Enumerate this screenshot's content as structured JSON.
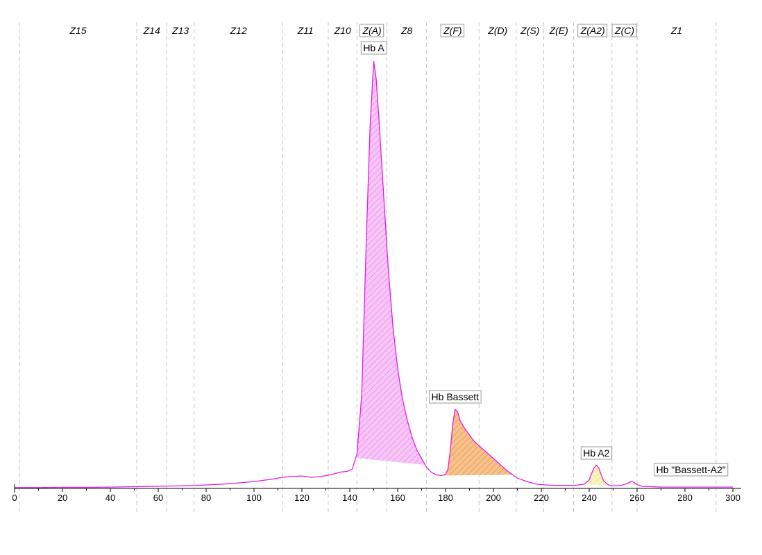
{
  "chart_data": {
    "type": "area",
    "xlim": [
      0,
      300
    ],
    "x_ticks": [
      0,
      20,
      40,
      60,
      80,
      100,
      120,
      140,
      160,
      180,
      200,
      220,
      240,
      260,
      280,
      300
    ],
    "zone_boundaries": [
      2,
      51,
      63.5,
      75,
      112,
      131,
      143,
      155.5,
      172,
      194,
      209.5,
      221,
      233.5,
      249.5,
      260,
      293
    ],
    "zones": [
      {
        "label": "Z15",
        "center": 26.5,
        "boxed": false
      },
      {
        "label": "Z14",
        "center": 57.3,
        "boxed": false
      },
      {
        "label": "Z13",
        "center": 69.3,
        "boxed": false
      },
      {
        "label": "Z12",
        "center": 93.5,
        "boxed": false
      },
      {
        "label": "Z11",
        "center": 121.5,
        "boxed": false
      },
      {
        "label": "Z10",
        "center": 137,
        "boxed": false
      },
      {
        "label": "Z(A)",
        "center": 149.3,
        "boxed": true
      },
      {
        "label": "Z8",
        "center": 163.8,
        "boxed": false
      },
      {
        "label": "Z(F)",
        "center": 183,
        "boxed": true
      },
      {
        "label": "Z(D)",
        "center": 201.8,
        "boxed": false
      },
      {
        "label": "Z(S)",
        "center": 215.3,
        "boxed": false
      },
      {
        "label": "Z(E)",
        "center": 227.3,
        "boxed": false
      },
      {
        "label": "Z(A2)",
        "center": 241.5,
        "boxed": true
      },
      {
        "label": "Z(C)",
        "center": 254.8,
        "boxed": true
      },
      {
        "label": "Z1",
        "center": 276.5,
        "boxed": false
      }
    ],
    "trace": {
      "color": "#e020e0",
      "x": [
        0,
        10,
        20,
        30,
        40,
        50,
        60,
        70,
        80,
        90,
        100,
        108,
        112,
        116,
        120,
        124,
        128,
        132,
        136,
        139,
        141,
        143,
        145,
        147,
        148.5,
        150,
        151,
        152,
        154,
        156,
        158,
        160,
        162,
        164,
        166,
        168,
        170,
        172,
        174,
        176,
        178,
        180,
        181,
        182,
        183,
        184,
        185,
        186,
        188,
        190,
        192,
        194,
        196,
        198,
        200,
        202,
        204,
        206,
        208,
        210,
        214,
        218,
        222,
        226,
        230,
        234,
        238,
        240,
        241,
        242,
        243,
        244,
        245,
        246,
        248,
        250,
        252,
        254,
        256,
        257,
        258,
        259,
        260,
        262,
        266,
        270,
        280,
        290,
        300
      ],
      "y": [
        0.2,
        0.2,
        0.25,
        0.25,
        0.3,
        0.4,
        0.5,
        0.6,
        0.8,
        1.1,
        1.6,
        2.2,
        2.6,
        2.8,
        2.9,
        2.6,
        2.8,
        3.2,
        3.8,
        4.0,
        4.5,
        8,
        22,
        60,
        85,
        100,
        96,
        88,
        70,
        52,
        38,
        28,
        21,
        16,
        12,
        9,
        7,
        5,
        3.8,
        3.2,
        3.0,
        3.3,
        4.5,
        9,
        15,
        18.5,
        18,
        16,
        14,
        12.5,
        11,
        10,
        9,
        8,
        7,
        6,
        5,
        4,
        3.2,
        2.4,
        1.6,
        1.0,
        0.8,
        0.7,
        0.7,
        0.7,
        1.0,
        2.0,
        3.5,
        4.8,
        5.4,
        4.8,
        3.2,
        1.8,
        0.8,
        0.6,
        0.6,
        0.8,
        1.2,
        1.5,
        1.6,
        1.3,
        0.9,
        0.5,
        0.4,
        0.3,
        0.3,
        0.3,
        0.3
      ]
    },
    "peaks": [
      {
        "name": "Hb A",
        "x": 150,
        "y": 100,
        "range": [
          142.5,
          171.5
        ],
        "fill": "#f7c6f7",
        "hatch": "#e98be9"
      },
      {
        "name": "Hb Bassett",
        "x": 184,
        "y": 18.5,
        "range": [
          178,
          208
        ],
        "fill": "#f7c28d",
        "hatch": "#e8934a"
      },
      {
        "name": "Hb A2",
        "x": 243,
        "y": 5.4,
        "range": [
          238,
          250
        ],
        "fill": "#fbf3bf",
        "hatch": "#eedf8c"
      },
      {
        "name": "Hb \"Bassett-A2\"",
        "x": 258,
        "y": 1.6,
        "range": [
          255,
          262
        ],
        "fill": "#f3f0e0",
        "hatch": "#d9d2b6"
      }
    ]
  }
}
